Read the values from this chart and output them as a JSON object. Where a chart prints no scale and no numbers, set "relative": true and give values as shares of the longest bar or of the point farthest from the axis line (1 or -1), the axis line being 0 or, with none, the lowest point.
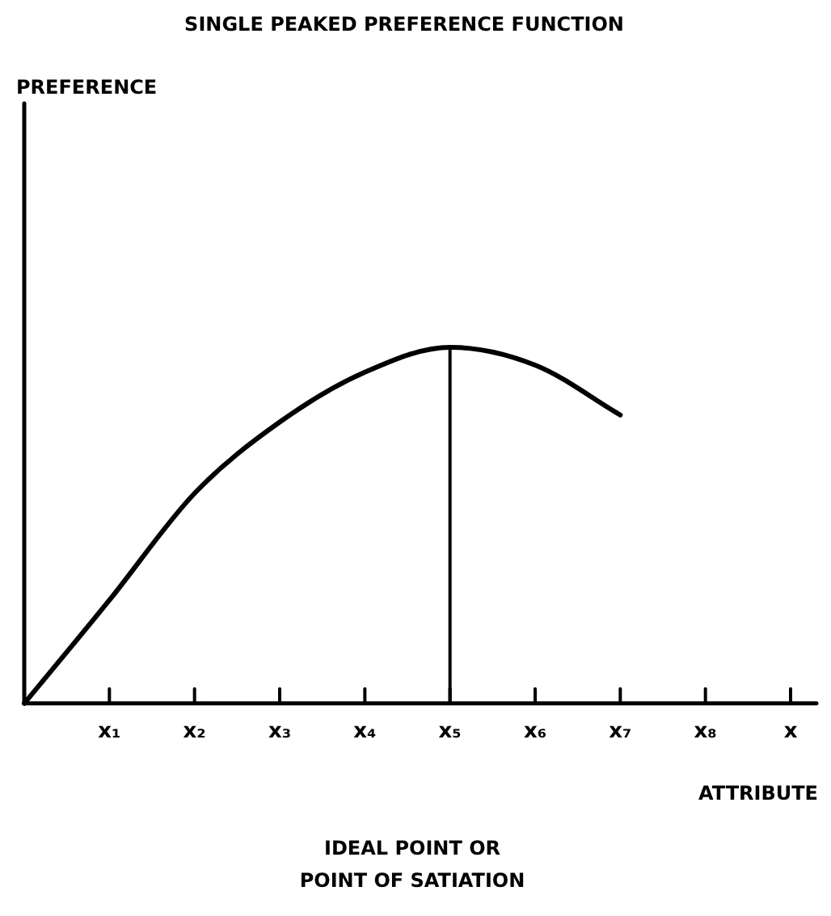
{
  "chart_data": {
    "type": "line",
    "title": "SINGLE PEAKED PREFERENCE FUNCTION",
    "xlabel": "ATTRIBUTE",
    "categories": [
      null,
      "x₁",
      "x₂",
      "x₃",
      "x₄",
      "x₅",
      "x₆",
      "x₇",
      "x₈",
      "x"
    ],
    "relative": true,
    "series": [
      {
        "color": "#000000",
        "values": [
          0,
          0.29,
          0.59,
          0.79,
          0.93,
          1,
          0.95,
          0.81,
          null,
          null
        ]
      }
    ],
    "ref_lines": [
      {
        "axis": "x",
        "value": "x₅",
        "color": "#000000"
      }
    ],
    "annotations": [
      "PREFERENCE",
      "IDEAL POINT OR\nPOINT OF SATIATION"
    ],
    "marker": "none",
    "line_style": "solid",
    "grid": false,
    "legend": false
  }
}
